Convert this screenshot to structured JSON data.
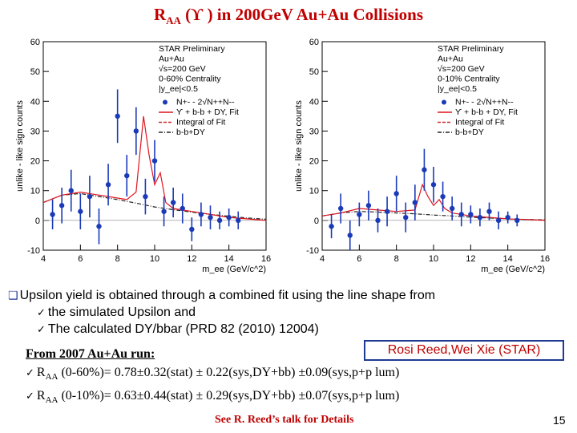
{
  "slide": {
    "title_main": "R",
    "title_sub": "AA",
    "title_rest": " (ϒ ) in 200GeV Au+Au Collisions",
    "bullet_main": "Upsilon yield is obtained through a combined fit using the line shape from",
    "bullet_sub1": "the simulated Upsilon and",
    "bullet_sub2": "The calculated DY/bbar (PRD 82 (2010) 12004)",
    "results_header": "From 2007 Au+Au run:",
    "credit": "Rosi Reed,Wei Xie (STAR)",
    "r1_pre": "R",
    "r1_sub": "AA",
    "r1_text": " (0-60%)= 0.78±0.32(stat) ± 0.22(sys,DY+bb) ±0.09(sys,p+p lum)",
    "r2_pre": "R",
    "r2_sub": "AA",
    "r2_text": " (0-10%)= 0.63±0.44(stat) ± 0.29(sys,DY+bb) ±0.07(sys,p+p lum)",
    "footer": "See R. Reed’s talk for Details",
    "page_number": "15"
  },
  "colors": {
    "title": "#c00000",
    "accent": "#1f3a93",
    "data": "#1a3ab8",
    "fit": "#e0141e",
    "integral": "#c82828",
    "bb": "#222222"
  },
  "chart_data": [
    {
      "type": "scatter",
      "ylabel": "unlike - like sign counts",
      "xlabel": "m_ee (GeV/c^2)",
      "xlim": [
        4,
        16
      ],
      "ylim": [
        -10,
        60
      ],
      "xticks": [
        4,
        6,
        8,
        10,
        12,
        14,
        16
      ],
      "yticks": [
        -10,
        0,
        10,
        20,
        30,
        40,
        50,
        60
      ],
      "legend_header": [
        "STAR Preliminary",
        "Au+Au",
        "√s=200 GeV",
        "0-60% Centrality",
        "|y_ee|<0.5"
      ],
      "legend_entries": [
        "N+- - 2√N++N--",
        "ϒ + b-b + DY, Fit",
        "Integral of Fit",
        "b-b+DY"
      ],
      "series": [
        {
          "name": "N+- - 2√N++N--",
          "x": [
            4.5,
            5.0,
            5.5,
            6.0,
            6.5,
            7.0,
            7.5,
            8.0,
            8.5,
            9.0,
            9.5,
            10.0,
            10.5,
            11.0,
            11.5,
            12.0,
            12.5,
            13.0,
            13.5,
            14.0,
            14.5
          ],
          "y": [
            2,
            5,
            10,
            3,
            8,
            -2,
            12,
            35,
            15,
            30,
            8,
            20,
            3,
            6,
            4,
            -3,
            2,
            1,
            0,
            1,
            0
          ],
          "err": [
            5,
            6,
            7,
            6,
            7,
            6,
            7,
            9,
            7,
            8,
            6,
            7,
            5,
            5,
            5,
            4,
            4,
            4,
            3,
            3,
            3
          ]
        },
        {
          "name": "ϒ + b-b + DY, Fit",
          "x": [
            4,
            5,
            6,
            7,
            7.5,
            8,
            8.5,
            9,
            9.4,
            9.7,
            10,
            10.3,
            10.6,
            11,
            12,
            13,
            14,
            15,
            16
          ],
          "y": [
            6,
            8.5,
            9.5,
            8.5,
            8,
            7.5,
            7,
            9.5,
            35,
            22,
            12,
            16,
            6,
            4,
            3,
            2,
            1,
            0.5,
            0
          ]
        },
        {
          "name": "b-b+DY",
          "x": [
            4,
            5,
            6,
            7,
            8,
            9,
            10,
            11,
            12,
            13,
            14,
            15,
            16
          ],
          "y": [
            6,
            8.5,
            9,
            8,
            7,
            5.8,
            4.5,
            3.6,
            2.8,
            2,
            1.4,
            0.8,
            0.4
          ]
        }
      ]
    },
    {
      "type": "scatter",
      "ylabel": "unlike - like sign counts",
      "xlabel": "m_ee (GeV/c^2)",
      "xlim": [
        4,
        16
      ],
      "ylim": [
        -10,
        60
      ],
      "xticks": [
        4,
        6,
        8,
        10,
        12,
        14,
        16
      ],
      "yticks": [
        -10,
        0,
        10,
        20,
        30,
        40,
        50,
        60
      ],
      "legend_header": [
        "STAR Preliminary",
        "Au+Au",
        "√s=200 GeV",
        "0-10% Centrality",
        "|y_ee|<0.5"
      ],
      "legend_entries": [
        "N+- - 2√N++N--",
        "ϒ + b-b + DY, Fit",
        "Integral of Fit",
        "b-b+DY"
      ],
      "series": [
        {
          "name": "N+- - 2√N++N--",
          "x": [
            4.5,
            5.0,
            5.5,
            6.0,
            6.5,
            7.0,
            7.5,
            8.0,
            8.5,
            9.0,
            9.5,
            10.0,
            10.5,
            11.0,
            11.5,
            12.0,
            12.5,
            13.0,
            13.5,
            14.0,
            14.5
          ],
          "y": [
            -2,
            4,
            -5,
            2,
            5,
            0,
            3,
            9,
            1,
            6,
            17,
            12,
            8,
            4,
            2,
            2,
            1,
            3,
            0,
            1,
            0
          ],
          "err": [
            4,
            5,
            5,
            4,
            5,
            4,
            5,
            6,
            5,
            6,
            7,
            6,
            5,
            4,
            4,
            3,
            3,
            3,
            3,
            2,
            2
          ]
        },
        {
          "name": "ϒ + b-b + DY, Fit",
          "x": [
            4,
            5,
            6,
            7,
            8,
            9,
            9.4,
            9.7,
            10,
            10.3,
            10.6,
            11,
            12,
            13,
            14,
            15,
            16
          ],
          "y": [
            1.5,
            2.5,
            4,
            3.5,
            3,
            3.5,
            12,
            8,
            5,
            7,
            4,
            2.5,
            1.5,
            1,
            0.5,
            0.3,
            0
          ]
        },
        {
          "name": "b-b+DY",
          "x": [
            4,
            5,
            6,
            7,
            8,
            9,
            10,
            11,
            12,
            13,
            14,
            15,
            16
          ],
          "y": [
            1.5,
            2.5,
            3,
            2.8,
            2.5,
            2.2,
            1.8,
            1.5,
            1.1,
            0.8,
            0.5,
            0.3,
            0.2
          ]
        }
      ]
    }
  ]
}
